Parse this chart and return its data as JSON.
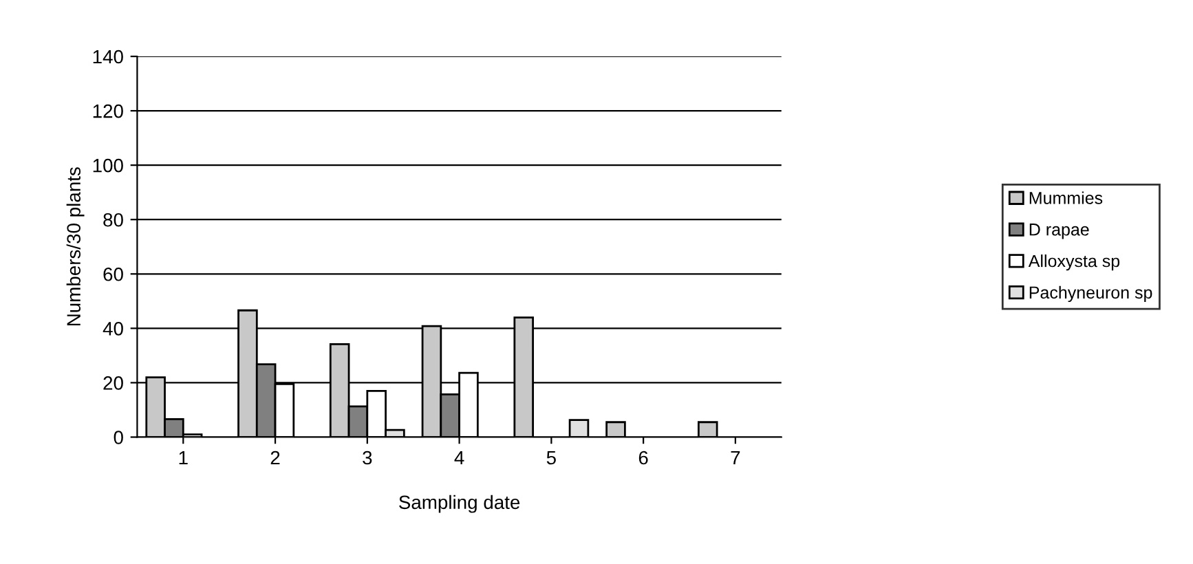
{
  "chart_data": {
    "type": "bar",
    "xlabel": "Sampling date",
    "ylabel": "Numbers/30 plants",
    "categories": [
      "1",
      "2",
      "3",
      "4",
      "5",
      "6",
      "7"
    ],
    "series": [
      {
        "name": "Mummies",
        "color": "#c8c8c8",
        "values": [
          22,
          46.6,
          34.2,
          40.8,
          44,
          5.5,
          5.5
        ]
      },
      {
        "name": "D rapae",
        "color": "#808080",
        "values": [
          6.6,
          26.8,
          11.3,
          15.7,
          0,
          0,
          0
        ]
      },
      {
        "name": "Alloxysta sp",
        "color": "#ffffff",
        "values": [
          1,
          19.5,
          17,
          23.6,
          0,
          0,
          0
        ]
      },
      {
        "name": "Pachyneuron sp",
        "color": "#e0e0e0",
        "values": [
          0,
          0,
          2.6,
          0,
          6.3,
          0,
          0
        ]
      }
    ],
    "ylim": [
      0,
      140
    ],
    "yticks": [
      0,
      20,
      40,
      60,
      80,
      100,
      120,
      140
    ],
    "grid": "y",
    "legend": "right"
  }
}
